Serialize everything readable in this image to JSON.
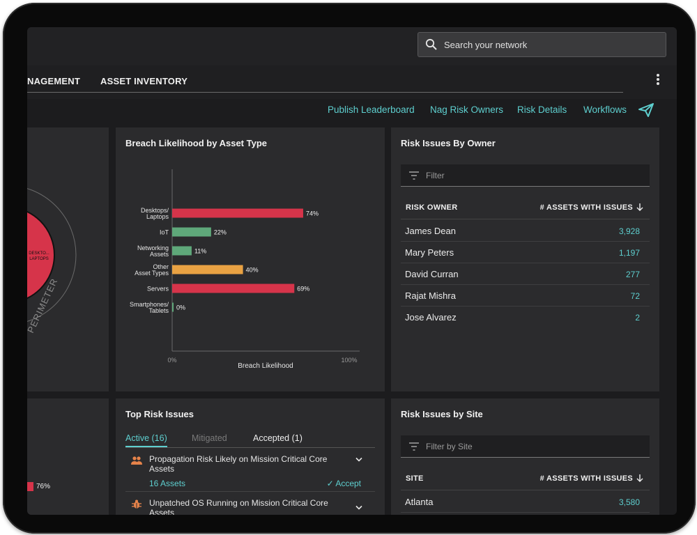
{
  "search": {
    "placeholder": "Search your network"
  },
  "tabs": {
    "management_partial": "NAGEMENT",
    "asset_inventory": "ASSET INVENTORY"
  },
  "actions": {
    "publish_leaderboard": "Publish Leaderboard",
    "nag_risk_owners": "Nag Risk Owners",
    "risk_details": "Risk Details",
    "workflows": "Workflows"
  },
  "perimeter": {
    "slice_label_1": "DESKTO...",
    "slice_label_2": "LAPTOPS",
    "ring_label": "PERIMETER",
    "bar_value": "76%"
  },
  "breach_chart": {
    "title": "Breach Likelihood by Asset Type"
  },
  "chart_data": {
    "type": "bar",
    "orientation": "horizontal",
    "title": "Breach Likelihood by Asset Type",
    "xlabel": "Breach Likelihood",
    "ylabel": "",
    "xlim": [
      0,
      100
    ],
    "x_ticks": [
      "0%",
      "100%"
    ],
    "categories": [
      [
        "Desktops/",
        "Laptops"
      ],
      [
        "IoT"
      ],
      [
        "Networking",
        "Assets"
      ],
      [
        "Other",
        "Asset Types"
      ],
      [
        "Servers"
      ],
      [
        "Smartphones/",
        "Tablets"
      ]
    ],
    "values": [
      74,
      22,
      11,
      40,
      69,
      0
    ],
    "value_labels": [
      "74%",
      "22%",
      "11%",
      "40%",
      "69%",
      "0%"
    ],
    "colors": [
      "#d6344a",
      "#5fa87a",
      "#5fa87a",
      "#e9a243",
      "#d6344a",
      "#5fa87a"
    ],
    "grid": false
  },
  "risk_owner": {
    "title": "Risk Issues By Owner",
    "filter_placeholder": "Filter",
    "col_owner": "RISK OWNER",
    "col_assets": "# ASSETS WITH ISSUES",
    "rows": [
      {
        "name": "James Dean",
        "value": "3,928"
      },
      {
        "name": "Mary Peters",
        "value": "1,197"
      },
      {
        "name": "David Curran",
        "value": "277"
      },
      {
        "name": "Rajat Mishra",
        "value": "72"
      },
      {
        "name": "Jose Alvarez",
        "value": "2"
      }
    ]
  },
  "top_risk": {
    "title": "Top Risk Issues",
    "tab_active": "Active (16)",
    "tab_mitigated": "Mitigated",
    "tab_accepted": "Accepted (1)",
    "issues": [
      {
        "text": "Propagation Risk Likely on Mission Critical Core Assets",
        "count": "16 Assets",
        "accept": "Accept",
        "icon": "people-icon"
      },
      {
        "text": "Unpatched OS Running on Mission Critical Core Assets",
        "icon": "bug-icon"
      }
    ]
  },
  "risk_site": {
    "title": "Risk Issues by Site",
    "filter_placeholder": "Filter by Site",
    "col_site": "SITE",
    "col_assets": "# ASSETS WITH ISSUES",
    "rows": [
      {
        "name": "Atlanta",
        "value": "3,580"
      }
    ]
  },
  "colors": {
    "accent": "#5ecfcf",
    "red": "#d6344a",
    "green": "#5fa87a",
    "orange": "#e9a243"
  }
}
